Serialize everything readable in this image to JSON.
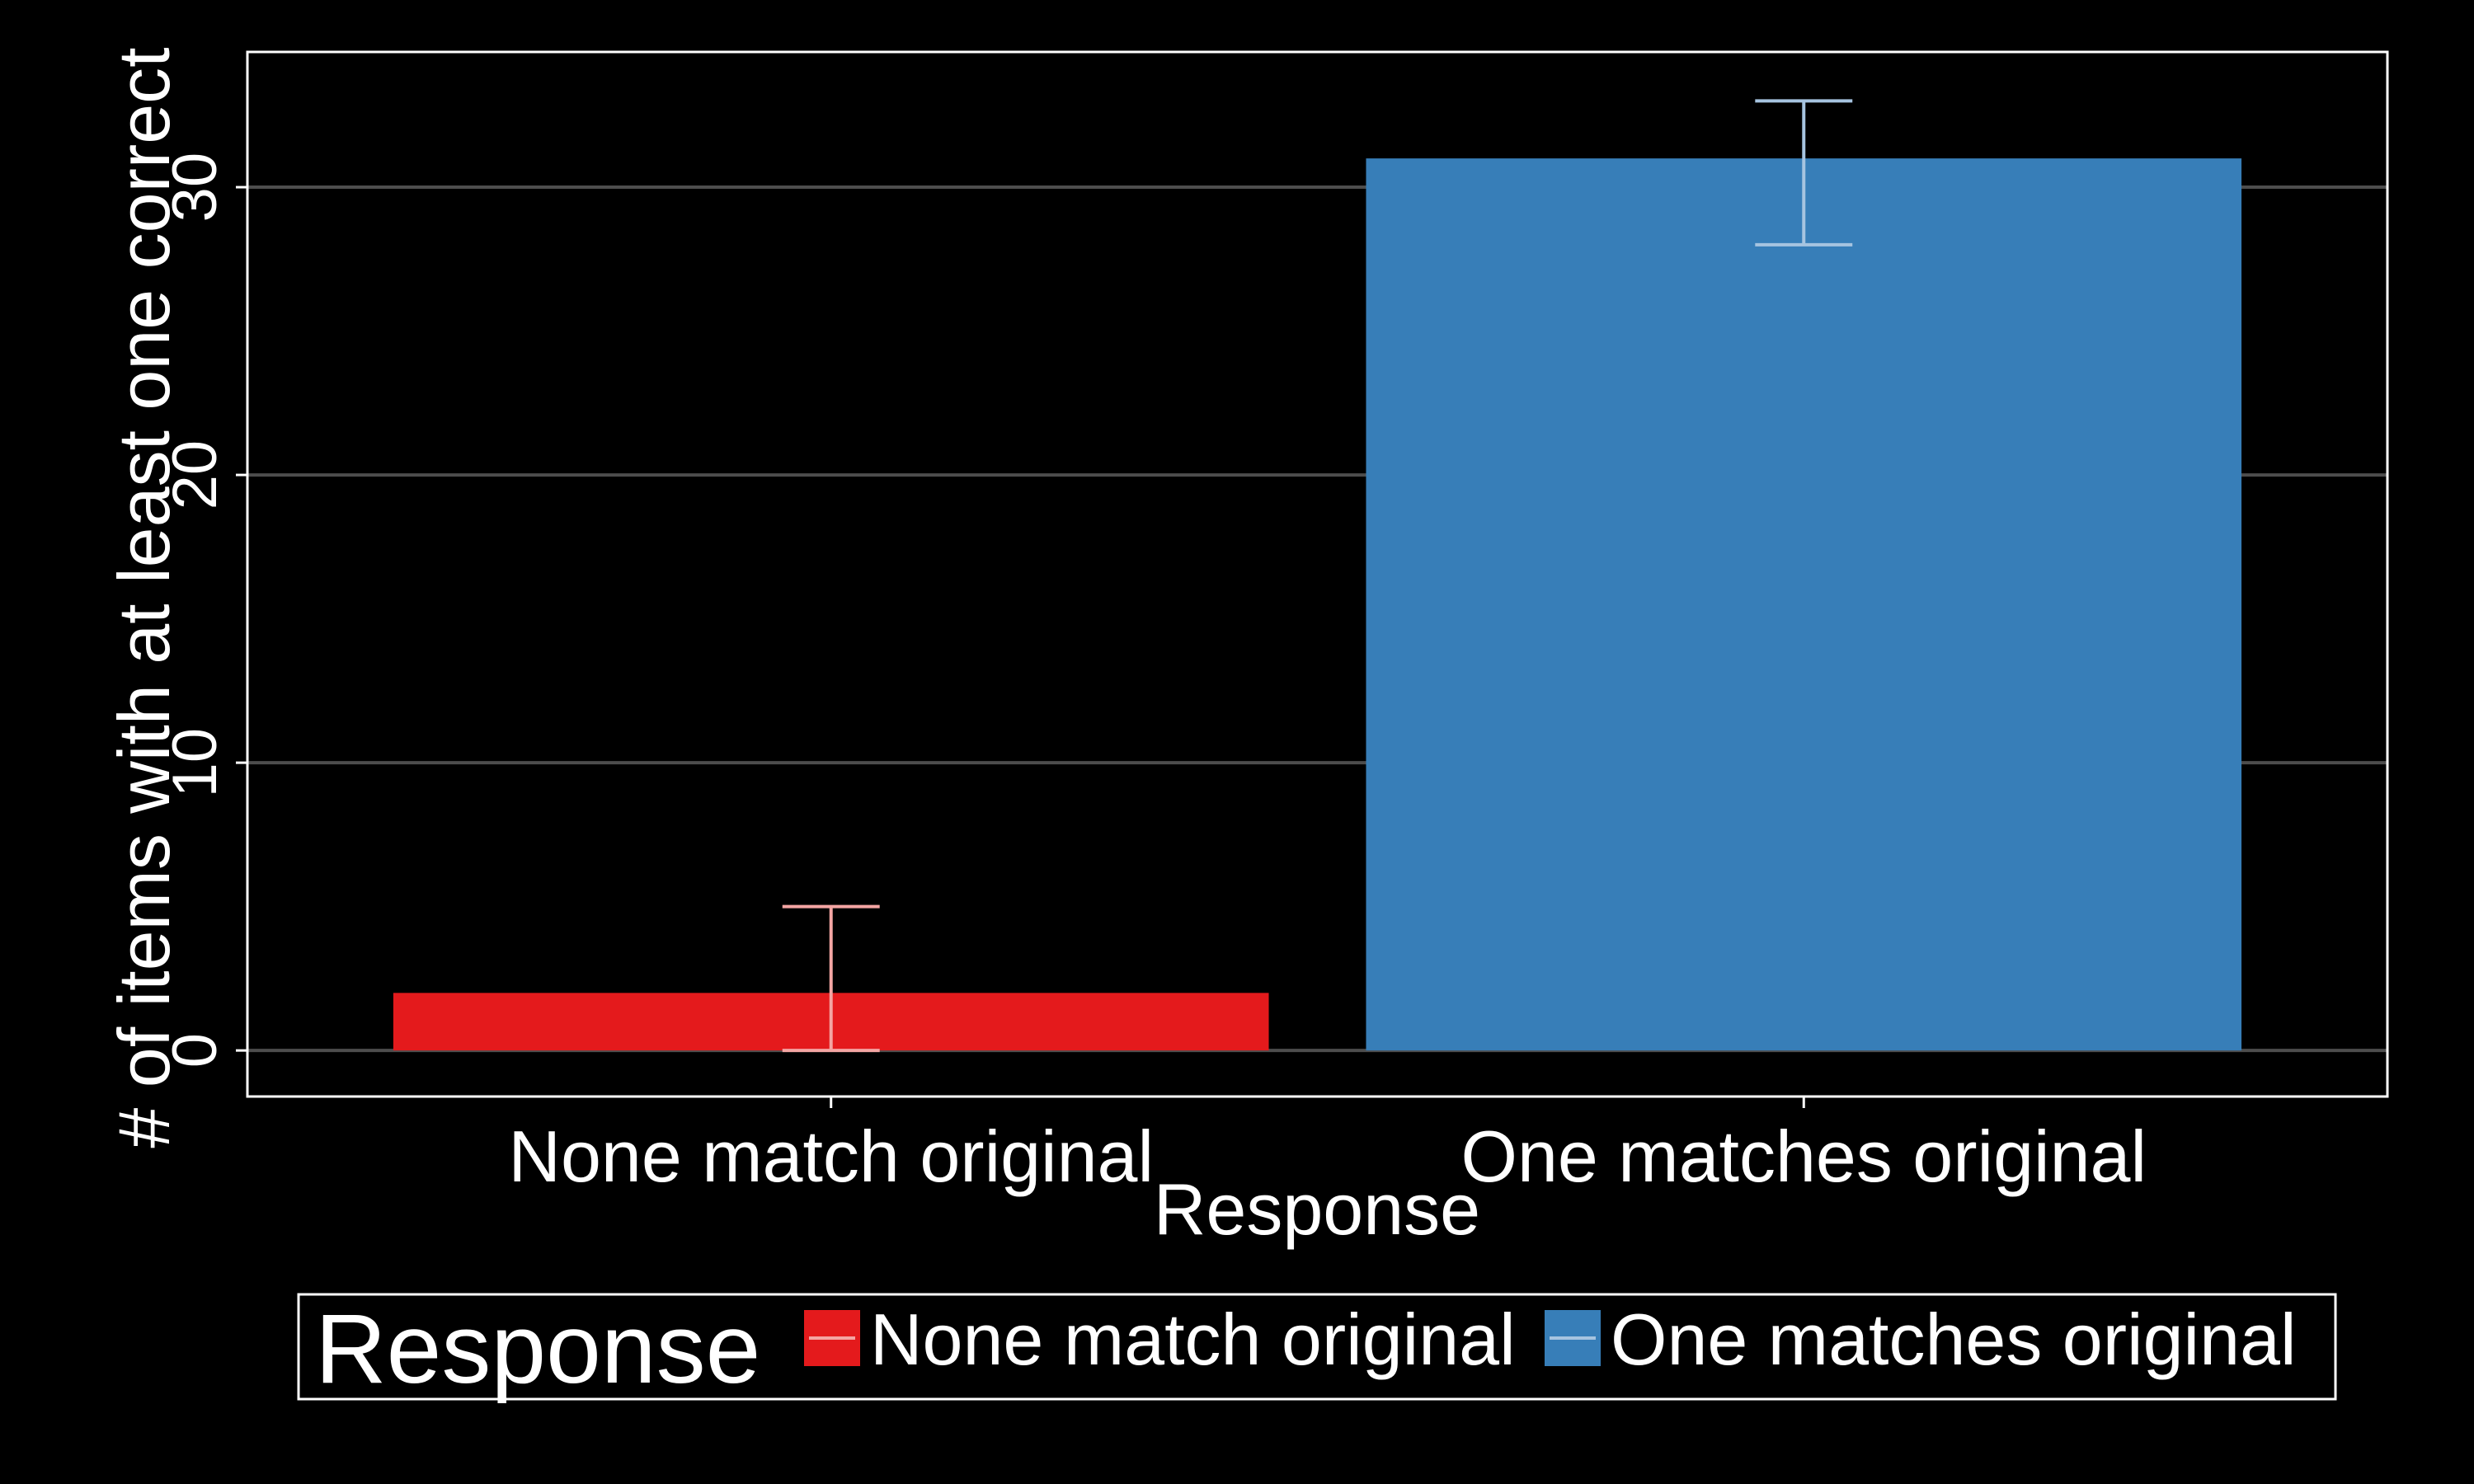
{
  "chart_data": {
    "type": "bar",
    "title": "",
    "xlabel": "Response",
    "ylabel": "# of items with at least one correct",
    "categories": [
      "None match original",
      "One matches original"
    ],
    "values": [
      2,
      31
    ],
    "error_bars": [
      {
        "low": 0,
        "high": 5
      },
      {
        "low": 28,
        "high": 33
      }
    ],
    "yticks": [
      0,
      10,
      20,
      30
    ],
    "ylim": [
      -1.6,
      34.7
    ],
    "grid": "horizontal major lines",
    "colors": {
      "background": "#000000",
      "bars": [
        "#e41a1c",
        "#377eb8"
      ],
      "error_bars": [
        "#f4a5a3",
        "#a6c4e0"
      ],
      "grid": "#4d4d4d",
      "text": "#ffffff"
    },
    "legend": {
      "title": "Response",
      "placement": "bottom",
      "entries": [
        "None match original",
        "One matches original"
      ]
    }
  }
}
